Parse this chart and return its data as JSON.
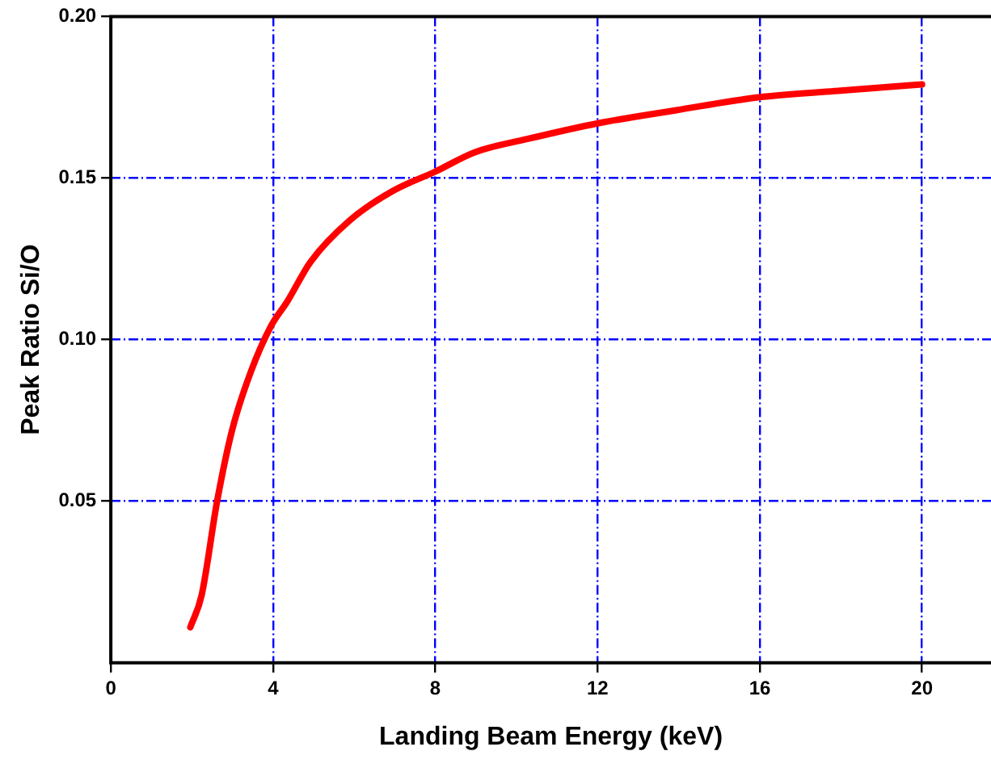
{
  "chart_data": {
    "type": "line",
    "xlabel": "Landing Beam Energy (keV)",
    "ylabel": "Peak Ratio Si/O",
    "xlim": [
      0,
      21.7
    ],
    "xticks": [
      0,
      4,
      8,
      12,
      16,
      20
    ],
    "ylim": [
      0,
      0.2
    ],
    "yticks": [
      0.05,
      {
        "value": 0.1,
        "label": "0.10"
      },
      0.15,
      {
        "value": 0.2,
        "label": "0.20"
      }
    ],
    "grid": true,
    "legend": false,
    "marker": "none",
    "line_style": "solid",
    "series": [
      {
        "color": "#ff0000",
        "x": [
          1.96,
          2.24,
          2.62,
          2.99,
          3.45,
          3.94,
          4.36,
          4.92,
          5.9,
          6.95,
          8.0,
          8.98,
          10.24,
          12.03,
          13.94,
          15.97,
          17.93,
          20.0
        ],
        "values": [
          0.011,
          0.021,
          0.05,
          0.072,
          0.09,
          0.104,
          0.112,
          0.124,
          0.137,
          0.146,
          0.152,
          0.158,
          0.162,
          0.167,
          0.171,
          0.175,
          0.177,
          0.179
        ]
      }
    ]
  }
}
